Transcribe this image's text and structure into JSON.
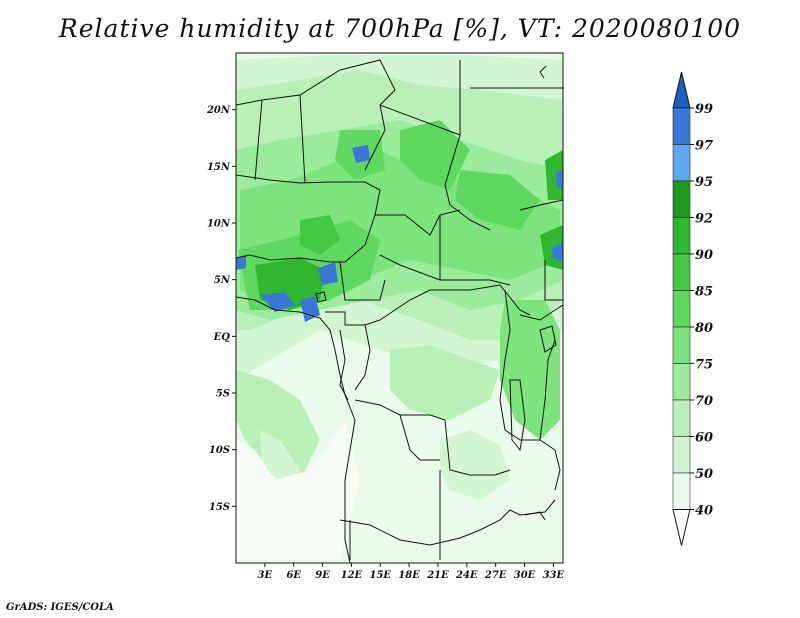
{
  "title": "Relative humidity at 700hPa [%], VT: 2020080100",
  "credit": "GrADS: IGES/COLA",
  "map": {
    "lon_range": [
      0,
      34
    ],
    "lat_range": [
      -20,
      25
    ],
    "lat_ticks": [
      {
        "value": 20,
        "label": "20N"
      },
      {
        "value": 15,
        "label": "15N"
      },
      {
        "value": 10,
        "label": "10N"
      },
      {
        "value": 5,
        "label": "5N"
      },
      {
        "value": 0,
        "label": "EQ"
      },
      {
        "value": -5,
        "label": "5S"
      },
      {
        "value": -10,
        "label": "10S"
      },
      {
        "value": -15,
        "label": "15S"
      }
    ],
    "lon_ticks": [
      {
        "value": 3,
        "label": "3E"
      },
      {
        "value": 6,
        "label": "6E"
      },
      {
        "value": 9,
        "label": "9E"
      },
      {
        "value": 12,
        "label": "12E"
      },
      {
        "value": 15,
        "label": "15E"
      },
      {
        "value": 18,
        "label": "18E"
      },
      {
        "value": 21,
        "label": "21E"
      },
      {
        "value": 24,
        "label": "24E"
      },
      {
        "value": 27,
        "label": "27E"
      },
      {
        "value": 30,
        "label": "30E"
      },
      {
        "value": 33,
        "label": "33E"
      }
    ]
  },
  "colorbar": {
    "levels": [
      "99",
      "97",
      "95",
      "92",
      "90",
      "85",
      "80",
      "75",
      "70",
      "60",
      "50",
      "40"
    ],
    "colors": [
      "#1f5fbf",
      "#3a78d8",
      "#5ea8ef",
      "#1e9b1e",
      "#2fb82f",
      "#45c945",
      "#5fd85f",
      "#7de47d",
      "#9ceb9c",
      "#b8f0b8",
      "#d2f6d2",
      "#ebfbeb",
      "#ffffff"
    ]
  }
}
